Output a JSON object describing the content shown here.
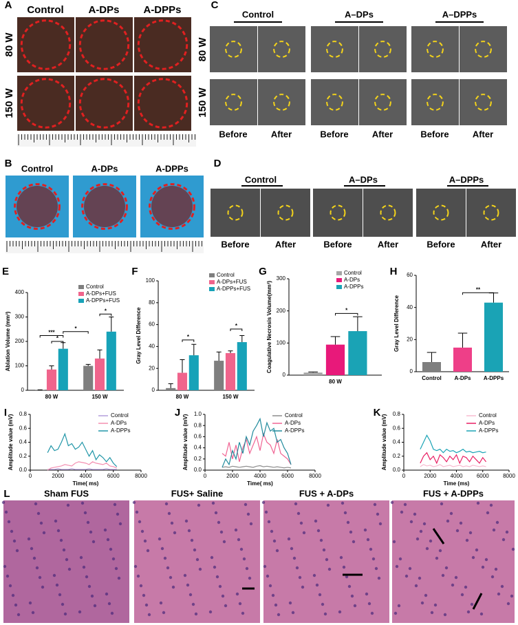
{
  "figure": {
    "A": {
      "letter": "A",
      "columns": [
        "Control",
        "A-DPs",
        "A-DPPs"
      ],
      "rows": [
        "80 W",
        "150 W"
      ]
    },
    "B": {
      "letter": "B",
      "columns": [
        "Control",
        "A-DPs",
        "A-DPPs"
      ]
    },
    "C": {
      "letter": "C",
      "groups": [
        "Control",
        "A–DPs",
        "A–DPPs"
      ],
      "rows": [
        "80 W",
        "150 W"
      ],
      "phases": [
        "Before",
        "After"
      ]
    },
    "D": {
      "letter": "D",
      "groups": [
        "Control",
        "A–DPs",
        "A–DPPs"
      ],
      "phases": [
        "Before",
        "After"
      ]
    },
    "L": {
      "letter": "L",
      "titles": [
        "Sham FUS",
        "FUS+ Saline",
        "FUS + A-DPs",
        "FUS + A-DPPs"
      ]
    }
  },
  "chart_data": [
    {
      "panel": "E",
      "type": "bar",
      "categories": [
        "80 W",
        "150 W"
      ],
      "y_label": "Ablation Volume (mm³)",
      "ylim": [
        0,
        400
      ],
      "yticks": [
        0,
        100,
        200,
        300,
        400
      ],
      "legend": "upper right",
      "series": [
        {
          "name": "Control",
          "color": "#7f7f7f",
          "values": [
            2,
            100
          ],
          "errors": [
            0,
            6
          ]
        },
        {
          "name": "A-DPs+FUS",
          "color": "#f0648c",
          "values": [
            85,
            130
          ],
          "errors": [
            15,
            35
          ]
        },
        {
          "name": "A-DPPs+FUS",
          "color": "#17a2b8",
          "values": [
            170,
            240
          ],
          "errors": [
            25,
            60
          ]
        }
      ],
      "annotations": [
        "***",
        "*",
        "*",
        "*"
      ]
    },
    {
      "panel": "F",
      "type": "bar",
      "categories": [
        "80 W",
        "150 W"
      ],
      "y_label": "Gray Level Difference",
      "ylim": [
        0,
        100
      ],
      "yticks": [
        0,
        20,
        40,
        60,
        80,
        100
      ],
      "legend": "upper right",
      "series": [
        {
          "name": "Control",
          "color": "#7f7f7f",
          "values": [
            2,
            27
          ],
          "errors": [
            4,
            8
          ]
        },
        {
          "name": "A-DPs+FUS",
          "color": "#f0648c",
          "values": [
            16,
            34
          ],
          "errors": [
            12,
            2
          ]
        },
        {
          "name": "A-DPPs+FUS",
          "color": "#17a2b8",
          "values": [
            32,
            44
          ],
          "errors": [
            10,
            6
          ]
        }
      ],
      "annotations": [
        "*",
        "*"
      ]
    },
    {
      "panel": "G",
      "type": "bar",
      "categories": [
        "80 W"
      ],
      "y_label": "Coagulative Necrosis Volume(mm³)",
      "ylim": [
        0,
        300
      ],
      "yticks": [
        0,
        100,
        200,
        300
      ],
      "legend": "upper right",
      "series": [
        {
          "name": "Control",
          "color": "#a6a6a6",
          "values": [
            8
          ],
          "errors": [
            2
          ]
        },
        {
          "name": "A-DPs",
          "color": "#e8197a",
          "values": [
            95
          ],
          "errors": [
            25
          ]
        },
        {
          "name": "A-DPPs",
          "color": "#1aa3b5",
          "values": [
            137
          ],
          "errors": [
            45
          ]
        }
      ],
      "annotations": [
        "*"
      ]
    },
    {
      "panel": "H",
      "type": "bar",
      "categories": [
        "Control",
        "A-DPs",
        "A-DPPs"
      ],
      "y_label": "Gray Level Difference",
      "values": [
        6,
        15,
        43
      ],
      "errors": [
        6,
        9,
        6
      ],
      "colors": [
        "#7f7f7f",
        "#ee3f88",
        "#1aa3b5"
      ],
      "ylim": [
        0,
        60
      ],
      "yticks": [
        0,
        20,
        40,
        60
      ],
      "annotations": [
        "**"
      ]
    },
    {
      "panel": "I",
      "type": "line",
      "x_label": "Time( ms)",
      "y_label": "Amplitude value (mV)",
      "xlim": [
        0,
        8000
      ],
      "xticks": [
        0,
        2000,
        4000,
        6000,
        8000
      ],
      "ylim": [
        0,
        0.8
      ],
      "yticks": [
        {
          "value": 0,
          "label": "0.0"
        },
        0.2,
        0.4,
        0.6,
        0.8
      ],
      "legend": "upper right",
      "x": [
        1250,
        1500,
        1750,
        2000,
        2250,
        2500,
        2750,
        3000,
        3250,
        3500,
        3750,
        4000,
        4250,
        4500,
        4750,
        5000,
        5250,
        5500,
        5750,
        6000,
        6250
      ],
      "series": [
        {
          "name": "Control",
          "color": "#b39ddb",
          "values": [
            0.01,
            0.01,
            0.01,
            0.02,
            0.01,
            0.01,
            0.01,
            0.02,
            0.01,
            0.01,
            0.01,
            0.01,
            0.02,
            0.01,
            0.01,
            0.01,
            0.01,
            0.02,
            0.01,
            0.01,
            0.01
          ]
        },
        {
          "name": "A-DPs",
          "color": "#f48fb1",
          "values": [
            0,
            0.03,
            0.04,
            0.05,
            0.06,
            0.08,
            0.07,
            0.06,
            0.1,
            0.12,
            0.11,
            0.1,
            0.08,
            0.12,
            0.1,
            0.09,
            0.08,
            0.1,
            0.06,
            0.05,
            0.03
          ]
        },
        {
          "name": "A-DPPs",
          "color": "#2196a8",
          "values": [
            0.25,
            0.35,
            0.28,
            0.3,
            0.4,
            0.52,
            0.35,
            0.38,
            0.3,
            0.33,
            0.4,
            0.3,
            0.2,
            0.28,
            0.15,
            0.22,
            0.18,
            0.12,
            0.18,
            0.1,
            0.05
          ]
        }
      ]
    },
    {
      "panel": "J",
      "type": "line",
      "x_label": "Time( ms)",
      "y_label": "Amplitude value (mV)",
      "xlim": [
        0,
        8000
      ],
      "xticks": [
        0,
        2000,
        4000,
        6000,
        8000
      ],
      "ylim": [
        0,
        1
      ],
      "yticks": [
        {
          "value": 0,
          "label": "0.0"
        },
        0.2,
        0.4,
        0.6,
        0.8,
        {
          "value": 1,
          "label": "1.0"
        }
      ],
      "legend": "upper right",
      "x": [
        1250,
        1500,
        1750,
        2000,
        2250,
        2500,
        2750,
        3000,
        3250,
        3500,
        3750,
        4000,
        4250,
        4500,
        4750,
        5000,
        5250,
        5500,
        5750,
        6000,
        6250
      ],
      "series": [
        {
          "name": "Control",
          "color": "#8c8c8c",
          "values": [
            0.05,
            0.06,
            0.05,
            0.07,
            0.06,
            0.05,
            0.06,
            0.07,
            0.06,
            0.05,
            0.07,
            0.08,
            0.06,
            0.07,
            0.06,
            0.05,
            0.06,
            0.05,
            0.04,
            0.05,
            0.04
          ]
        },
        {
          "name": "A-DPs",
          "color": "#f06292",
          "values": [
            0.3,
            0.25,
            0.5,
            0.2,
            0.45,
            0.15,
            0.4,
            0.55,
            0.3,
            0.45,
            0.6,
            0.35,
            0.65,
            0.5,
            0.45,
            0.3,
            0.55,
            0.3,
            0.25,
            0.2,
            0.1
          ]
        },
        {
          "name": "A-DPPs",
          "color": "#1f8a9c",
          "values": [
            0.05,
            0.2,
            0.1,
            0.35,
            0.2,
            0.5,
            0.3,
            0.6,
            0.45,
            0.7,
            0.8,
            0.92,
            0.6,
            0.85,
            0.7,
            0.75,
            0.5,
            0.55,
            0.4,
            0.3,
            0.1
          ]
        }
      ]
    },
    {
      "panel": "K",
      "type": "line",
      "x_label": "Time (ms)",
      "y_label": "Amplitude value (mV)",
      "xlim": [
        0,
        8000
      ],
      "xticks": [
        0,
        2000,
        4000,
        6000,
        8000
      ],
      "ylim": [
        0,
        0.8
      ],
      "yticks": [
        {
          "value": 0,
          "label": "0.0"
        },
        0.2,
        0.4,
        0.6,
        0.8
      ],
      "legend": "upper right",
      "x": [
        1250,
        1500,
        1750,
        2000,
        2250,
        2500,
        2750,
        3000,
        3250,
        3500,
        3750,
        4000,
        4250,
        4500,
        4750,
        5000,
        5250,
        5500,
        5750,
        6000,
        6250
      ],
      "series": [
        {
          "name": "Control",
          "color": "#f8bbd0",
          "values": [
            0.05,
            0.08,
            0.06,
            0.07,
            0.05,
            0.06,
            0.08,
            0.05,
            0.06,
            0.07,
            0.05,
            0.06,
            0.07,
            0.05,
            0.06,
            0.05,
            0.07,
            0.06,
            0.05,
            0.06,
            0.05
          ]
        },
        {
          "name": "A-DPs",
          "color": "#e91e63",
          "values": [
            0.1,
            0.2,
            0.25,
            0.15,
            0.2,
            0.1,
            0.22,
            0.18,
            0.12,
            0.2,
            0.15,
            0.22,
            0.1,
            0.2,
            0.18,
            0.12,
            0.2,
            0.15,
            0.1,
            0.18,
            0.12
          ]
        },
        {
          "name": "A-DPPs",
          "color": "#1aa3b5",
          "values": [
            0.3,
            0.4,
            0.5,
            0.42,
            0.3,
            0.28,
            0.3,
            0.25,
            0.3,
            0.27,
            0.28,
            0.25,
            0.27,
            0.3,
            0.26,
            0.27,
            0.25,
            0.26,
            0.27,
            0.25,
            0.26
          ]
        }
      ]
    }
  ]
}
